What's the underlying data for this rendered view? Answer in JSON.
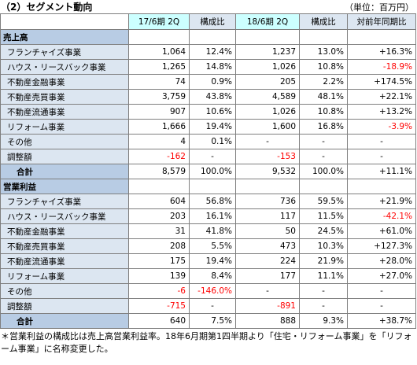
{
  "header": {
    "title": "（2）セグメント動向",
    "unit": "（単位：百万円）"
  },
  "table": {
    "headers": [
      "17/6期 2Q",
      "構成比",
      "18/6期 2Q",
      "構成比",
      "対前年同期比"
    ],
    "sections": [
      {
        "name": "売上高",
        "rows": [
          {
            "label": "フランチャイズ事業",
            "cells": [
              "1,064",
              "12.4%",
              "1,237",
              "13.0%",
              "+16.3%"
            ]
          },
          {
            "label": "ハウス・リースバック事業",
            "cells": [
              "1,265",
              "14.8%",
              "1,026",
              "10.8%",
              "-18.9%"
            ]
          },
          {
            "label": "不動産金融事業",
            "cells": [
              "74",
              "0.9%",
              "205",
              "2.2%",
              "+174.5%"
            ]
          },
          {
            "label": "不動産売買事業",
            "cells": [
              "3,759",
              "43.8%",
              "4,589",
              "48.1%",
              "+22.1%"
            ]
          },
          {
            "label": "不動産流通事業",
            "cells": [
              "907",
              "10.6%",
              "1,026",
              "10.8%",
              "+13.2%"
            ]
          },
          {
            "label": "リフォーム事業",
            "cells": [
              "1,666",
              "19.4%",
              "1,600",
              "16.8%",
              "-3.9%"
            ]
          },
          {
            "label": "その他",
            "cells": [
              "4",
              "0.1%",
              "-",
              "-",
              "-"
            ]
          },
          {
            "label": "調整額",
            "cells": [
              "-162",
              "-",
              "-153",
              "-",
              "-"
            ]
          }
        ],
        "total": {
          "label": "合計",
          "cells": [
            "8,579",
            "100.0%",
            "9,532",
            "100.0%",
            "+11.1%"
          ]
        }
      },
      {
        "name": "営業利益",
        "rows": [
          {
            "label": "フランチャイズ事業",
            "cells": [
              "604",
              "56.8%",
              "736",
              "59.5%",
              "+21.9%"
            ]
          },
          {
            "label": "ハウス・リースバック事業",
            "cells": [
              "203",
              "16.1%",
              "117",
              "11.5%",
              "-42.1%"
            ]
          },
          {
            "label": "不動産金融事業",
            "cells": [
              "31",
              "41.8%",
              "50",
              "24.5%",
              "+61.0%"
            ]
          },
          {
            "label": "不動産売買事業",
            "cells": [
              "208",
              "5.5%",
              "473",
              "10.3%",
              "+127.3%"
            ]
          },
          {
            "label": "不動産流通事業",
            "cells": [
              "175",
              "19.4%",
              "224",
              "21.9%",
              "+28.0%"
            ]
          },
          {
            "label": "リフォーム事業",
            "cells": [
              "139",
              "8.4%",
              "177",
              "11.1%",
              "+27.0%"
            ]
          },
          {
            "label": "その他",
            "cells": [
              "-6",
              "-146.0%",
              "-",
              "-",
              "-"
            ]
          },
          {
            "label": "調整額",
            "cells": [
              "-715",
              "-",
              "-891",
              "-",
              "-"
            ]
          }
        ],
        "total": {
          "label": "合計",
          "cells": [
            "640",
            "7.5%",
            "888",
            "9.3%",
            "+38.7%"
          ]
        }
      }
    ]
  },
  "footnote": "＊営業利益の構成比は売上高営業利益率。18年6月期第1四半期より「住宅・リフォーム事業」を「リフォーム事業」に名称変更した。"
}
